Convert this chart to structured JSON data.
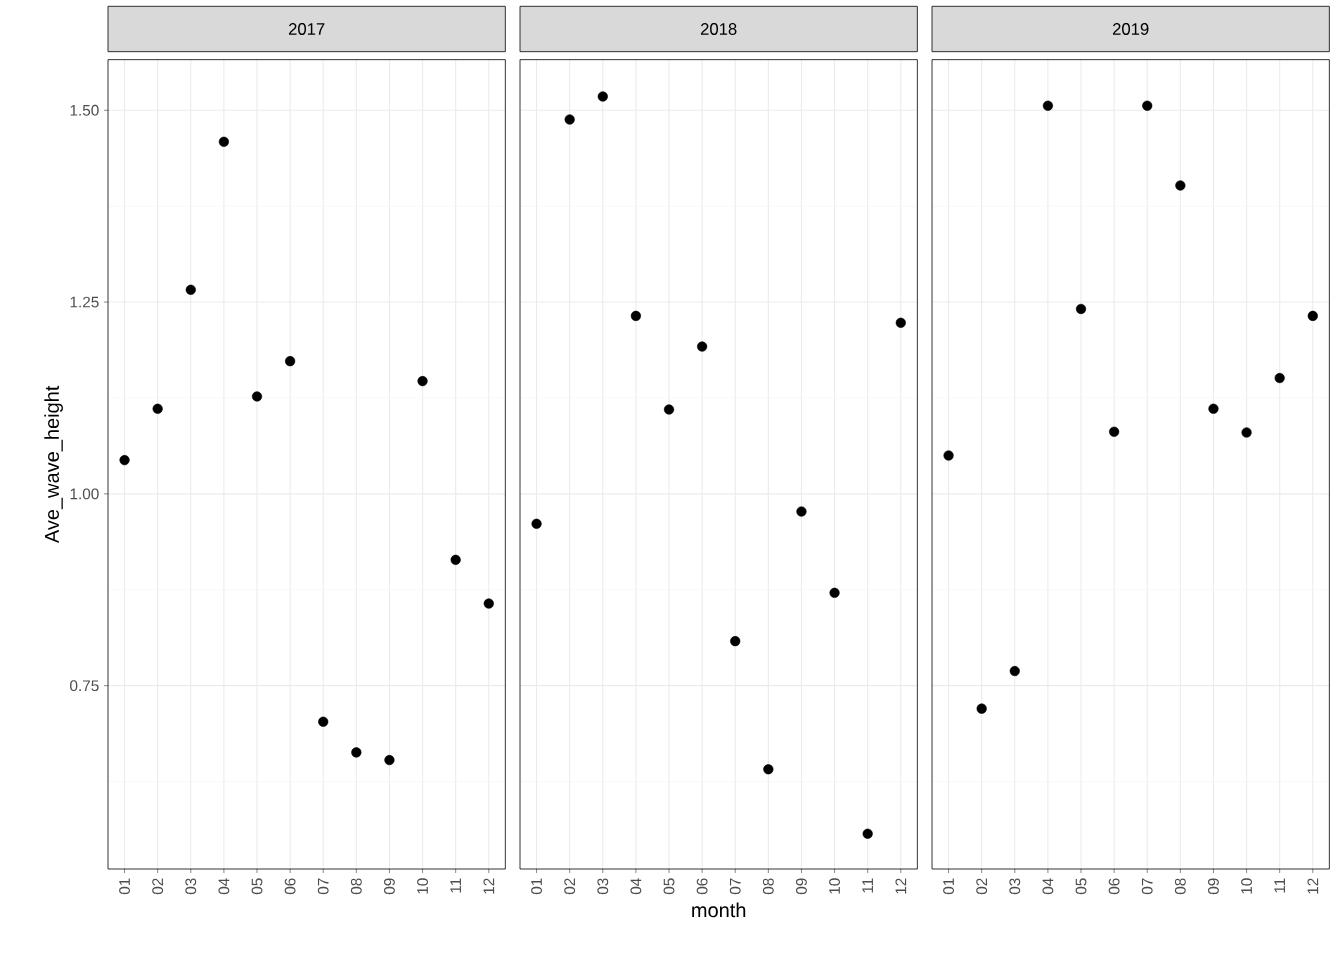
{
  "chart_data": [
    {
      "type": "scatter",
      "title": "2017",
      "ylabel": "Ave_wave_height",
      "categories": [
        "01",
        "02",
        "03",
        "04",
        "05",
        "06",
        "07",
        "08",
        "09",
        "10",
        "11",
        "12"
      ],
      "values": [
        1.044,
        1.111,
        1.266,
        1.459,
        1.127,
        1.173,
        0.703,
        0.663,
        0.653,
        1.147,
        0.914,
        0.857
      ],
      "color": "#000000",
      "grid": true,
      "ylim": [
        0.511,
        1.566
      ],
      "yticks": [
        0.75,
        {
          "value": 1.0,
          "label": "1.00"
        },
        1.25,
        {
          "value": 1.5,
          "label": "1.50"
        }
      ],
      "tick_labels": true
    },
    {
      "type": "scatter",
      "title": "2018",
      "xlabel": "month",
      "categories": [
        "01",
        "02",
        "03",
        "04",
        "05",
        "06",
        "07",
        "08",
        "09",
        "10",
        "11",
        "12"
      ],
      "values": [
        0.961,
        1.488,
        1.518,
        1.232,
        1.11,
        1.192,
        0.808,
        0.641,
        0.977,
        0.871,
        0.557,
        1.223
      ],
      "color": "#000000",
      "grid": true,
      "ylim": [
        0.511,
        1.566
      ],
      "yticks": [
        0.75,
        1,
        1.25,
        1.5
      ],
      "tick_labels": "x"
    },
    {
      "type": "scatter",
      "title": "2019",
      "categories": [
        "01",
        "02",
        "03",
        "04",
        "05",
        "06",
        "07",
        "08",
        "09",
        "10",
        "11",
        "12"
      ],
      "values": [
        1.05,
        0.72,
        0.769,
        1.506,
        1.241,
        1.081,
        1.506,
        1.402,
        1.111,
        1.08,
        1.151,
        1.232
      ],
      "color": "#000000",
      "grid": true,
      "ylim": [
        0.511,
        1.566
      ],
      "yticks": [
        0.75,
        1,
        1.25,
        1.5
      ],
      "tick_labels": "x"
    }
  ]
}
